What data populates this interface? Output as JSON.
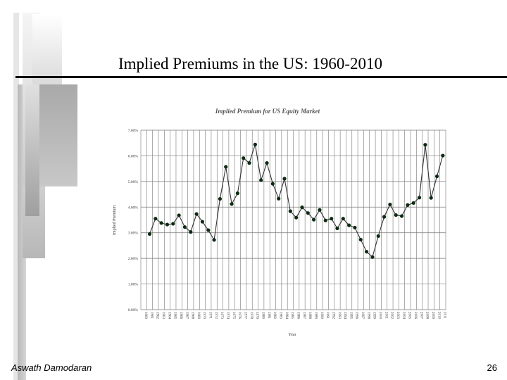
{
  "slide": {
    "title": "Implied Premiums in the US: 1960-2010",
    "author": "Aswath Damodaran",
    "page_number": "26"
  },
  "colors": {
    "decor_light": "#d9d9d9",
    "decor_mid": "#c0c0c0",
    "decor_dark": "#a6a6a6",
    "line": "#333333",
    "marker": "#0d2a12",
    "grid": "#777777"
  },
  "chart_data": {
    "type": "line",
    "title": "Implied Premium for US Equity Market",
    "xlabel": "Year",
    "ylabel": "Implied Premium",
    "ylim": [
      0,
      7
    ],
    "yticks": [
      "0.00%",
      "1.00%",
      "2.00%",
      "3.00%",
      "4.00%",
      "5.00%",
      "6.00%",
      "7.00%"
    ],
    "categories": [
      "1960",
      "1961",
      "1962",
      "1963",
      "1964",
      "1965",
      "1966",
      "1967",
      "1968",
      "1969",
      "1970",
      "1971",
      "1972",
      "1973",
      "1974",
      "1975",
      "1976",
      "1977",
      "1978",
      "1979",
      "1980",
      "1981",
      "1982",
      "1983",
      "1984",
      "1985",
      "1986",
      "1987",
      "1988",
      "1989",
      "1990",
      "1991",
      "1992",
      "1993",
      "1994",
      "1995",
      "1996",
      "1997",
      "1998",
      "1999",
      "2000",
      "2001",
      "2002",
      "2003",
      "2004",
      "2005",
      "2006",
      "2007",
      "2008",
      "2009",
      "2010",
      "2011"
    ],
    "values": [
      null,
      2.95,
      3.55,
      3.38,
      3.32,
      3.35,
      3.68,
      3.22,
      3.03,
      3.73,
      3.43,
      3.1,
      2.72,
      4.32,
      5.57,
      4.12,
      4.54,
      5.91,
      5.72,
      6.44,
      5.05,
      5.72,
      4.91,
      4.33,
      5.11,
      3.84,
      3.59,
      3.99,
      3.77,
      3.51,
      3.89,
      3.48,
      3.55,
      3.17,
      3.55,
      3.29,
      3.2,
      2.73,
      2.26,
      2.05,
      2.87,
      3.62,
      4.1,
      3.69,
      3.65,
      4.08,
      4.16,
      4.37,
      6.43,
      4.36,
      5.2,
      6.01
    ]
  }
}
